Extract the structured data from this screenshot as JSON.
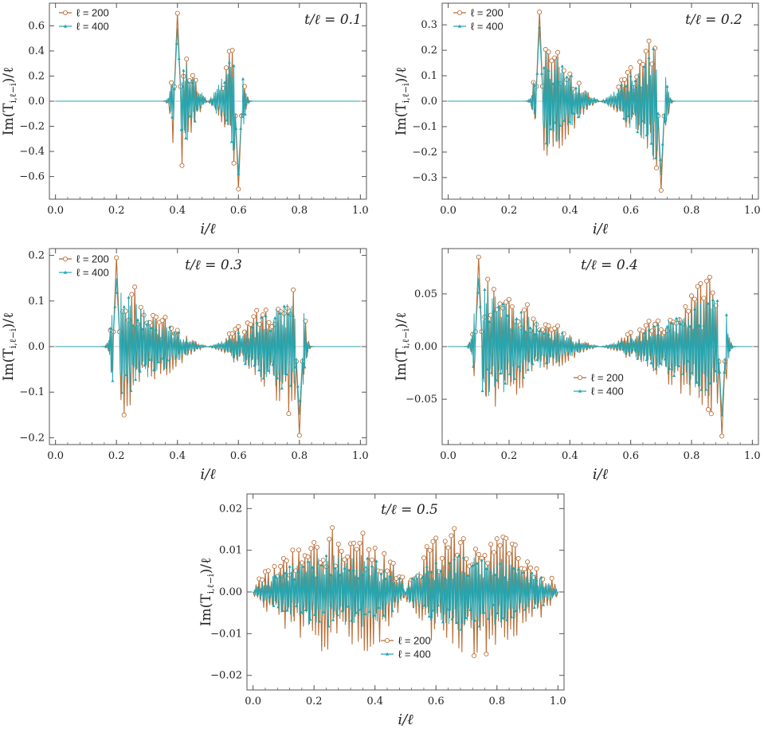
{
  "figure": {
    "description_panels": 5
  },
  "colors": {
    "series_200": "#b5652b",
    "series_400": "#1fa4b0",
    "frame": "#555555",
    "grid_zero": "#b0b0b0"
  },
  "chart_data": [
    {
      "type": "line",
      "annotation": "t/ℓ = 0.1",
      "xlabel": "i/ℓ",
      "ylabel": "Im(T_{i,ℓ−i})/ℓ",
      "xlim": [
        -0.02,
        1.02
      ],
      "ylim": [
        -0.78,
        0.78
      ],
      "xticks": [
        0.0,
        0.2,
        0.4,
        0.6,
        0.8,
        1.0
      ],
      "xtick_labels": [
        "0.0",
        "0.2",
        "0.4",
        "0.6",
        "0.8",
        "1.0"
      ],
      "yticks": [
        -0.6,
        -0.4,
        -0.2,
        0.0,
        0.2,
        0.4,
        0.6
      ],
      "ytick_labels": [
        "−0.6",
        "−0.4",
        "−0.2",
        "0.0",
        "0.2",
        "0.4",
        "0.6"
      ],
      "legend": [
        "ℓ = 200",
        "ℓ = 400"
      ],
      "legend_position": "top-left",
      "front_edges": [
        0.4,
        0.6
      ],
      "peak_amplitude": {
        "ℓ = 200": 0.7,
        "ℓ = 400": 0.58
      },
      "series": [
        {
          "name": "ℓ = 200",
          "color_key": "series_200",
          "n_points": 201,
          "markers": "open-circle"
        },
        {
          "name": "ℓ = 400",
          "color_key": "series_400",
          "n_points": 401,
          "markers": "triangle"
        }
      ]
    },
    {
      "type": "line",
      "annotation": "t/ℓ = 0.2",
      "xlabel": "i/ℓ",
      "ylabel": "Im(T_{i,ℓ−i})/ℓ",
      "xlim": [
        -0.02,
        1.02
      ],
      "ylim": [
        -0.385,
        0.385
      ],
      "xticks": [
        0.0,
        0.2,
        0.4,
        0.6,
        0.8,
        1.0
      ],
      "xtick_labels": [
        "0.0",
        "0.2",
        "0.4",
        "0.6",
        "0.8",
        "1.0"
      ],
      "yticks": [
        -0.3,
        -0.2,
        -0.1,
        0.0,
        0.1,
        0.2,
        0.3
      ],
      "ytick_labels": [
        "−0.3",
        "−0.2",
        "−0.1",
        "0.0",
        "0.1",
        "0.2",
        "0.3"
      ],
      "legend": [
        "ℓ = 200",
        "ℓ = 400"
      ],
      "legend_position": "top-left",
      "front_edges": [
        0.3,
        0.7
      ],
      "peak_amplitude": {
        "ℓ = 200": 0.35,
        "ℓ = 400": 0.29
      },
      "series": [
        {
          "name": "ℓ = 200",
          "color_key": "series_200",
          "n_points": 201,
          "markers": "open-circle"
        },
        {
          "name": "ℓ = 400",
          "color_key": "series_400",
          "n_points": 401,
          "markers": "triangle"
        }
      ]
    },
    {
      "type": "line",
      "annotation": "t/ℓ = 0.3",
      "xlabel": "i/ℓ",
      "ylabel": "Im(T_{i,ℓ−i})/ℓ",
      "xlim": [
        -0.02,
        1.02
      ],
      "ylim": [
        -0.215,
        0.215
      ],
      "xticks": [
        0.0,
        0.2,
        0.4,
        0.6,
        0.8,
        1.0
      ],
      "xtick_labels": [
        "0.0",
        "0.2",
        "0.4",
        "0.6",
        "0.8",
        "1.0"
      ],
      "yticks": [
        -0.2,
        -0.1,
        0.0,
        0.1,
        0.2
      ],
      "ytick_labels": [
        "−0.2",
        "−0.1",
        "0.0",
        "0.1",
        "0.2"
      ],
      "legend": [
        "ℓ = 200",
        "ℓ = 400"
      ],
      "legend_position": "top-left",
      "front_edges": [
        0.2,
        0.8
      ],
      "peak_amplitude": {
        "ℓ = 200": 0.195,
        "ℓ = 400": 0.15
      },
      "series": [
        {
          "name": "ℓ = 200",
          "color_key": "series_200",
          "n_points": 201,
          "markers": "open-circle"
        },
        {
          "name": "ℓ = 400",
          "color_key": "series_400",
          "n_points": 401,
          "markers": "triangle"
        }
      ]
    },
    {
      "type": "line",
      "annotation": "t/ℓ = 0.4",
      "xlabel": "i/ℓ",
      "ylabel": "Im(T_{i,ℓ−i})/ℓ",
      "xlim": [
        -0.02,
        1.02
      ],
      "ylim": [
        -0.093,
        0.093
      ],
      "xticks": [
        0.0,
        0.2,
        0.4,
        0.6,
        0.8,
        1.0
      ],
      "xtick_labels": [
        "0.0",
        "0.2",
        "0.4",
        "0.6",
        "0.8",
        "1.0"
      ],
      "yticks": [
        -0.05,
        0.0,
        0.05
      ],
      "ytick_labels": [
        "−0.05",
        "0.00",
        "0.05"
      ],
      "legend": [
        "ℓ = 200",
        "ℓ = 400"
      ],
      "legend_position": "bottom-center",
      "front_edges": [
        0.1,
        0.9
      ],
      "peak_amplitude": {
        "ℓ = 200": 0.085,
        "ℓ = 400": 0.065
      },
      "series": [
        {
          "name": "ℓ = 200",
          "color_key": "series_200",
          "n_points": 201,
          "markers": "open-circle"
        },
        {
          "name": "ℓ = 400",
          "color_key": "series_400",
          "n_points": 401,
          "markers": "triangle"
        }
      ]
    },
    {
      "type": "line",
      "annotation": "t/ℓ = 0.5",
      "xlabel": "i/ℓ",
      "ylabel": "Im(T_{i,ℓ−i})/ℓ",
      "xlim": [
        -0.02,
        1.02
      ],
      "ylim": [
        -0.0235,
        0.0235
      ],
      "xticks": [
        0.0,
        0.2,
        0.4,
        0.6,
        0.8,
        1.0
      ],
      "xtick_labels": [
        "0.0",
        "0.2",
        "0.4",
        "0.6",
        "0.8",
        "1.0"
      ],
      "yticks": [
        -0.02,
        -0.01,
        0.0,
        0.01,
        0.02
      ],
      "ytick_labels": [
        "−0.02",
        "−0.01",
        "0.00",
        "0.01",
        "0.02"
      ],
      "legend": [
        "ℓ = 200",
        "ℓ = 400"
      ],
      "legend_position": "bottom-center",
      "front_edges": [
        0.0,
        1.0
      ],
      "peak_amplitude": {
        "ℓ = 200": 0.021,
        "ℓ = 400": 0.0125
      },
      "series": [
        {
          "name": "ℓ = 200",
          "color_key": "series_200",
          "n_points": 201,
          "markers": "open-circle"
        },
        {
          "name": "ℓ = 400",
          "color_key": "series_400",
          "n_points": 401,
          "markers": "triangle"
        }
      ]
    }
  ]
}
